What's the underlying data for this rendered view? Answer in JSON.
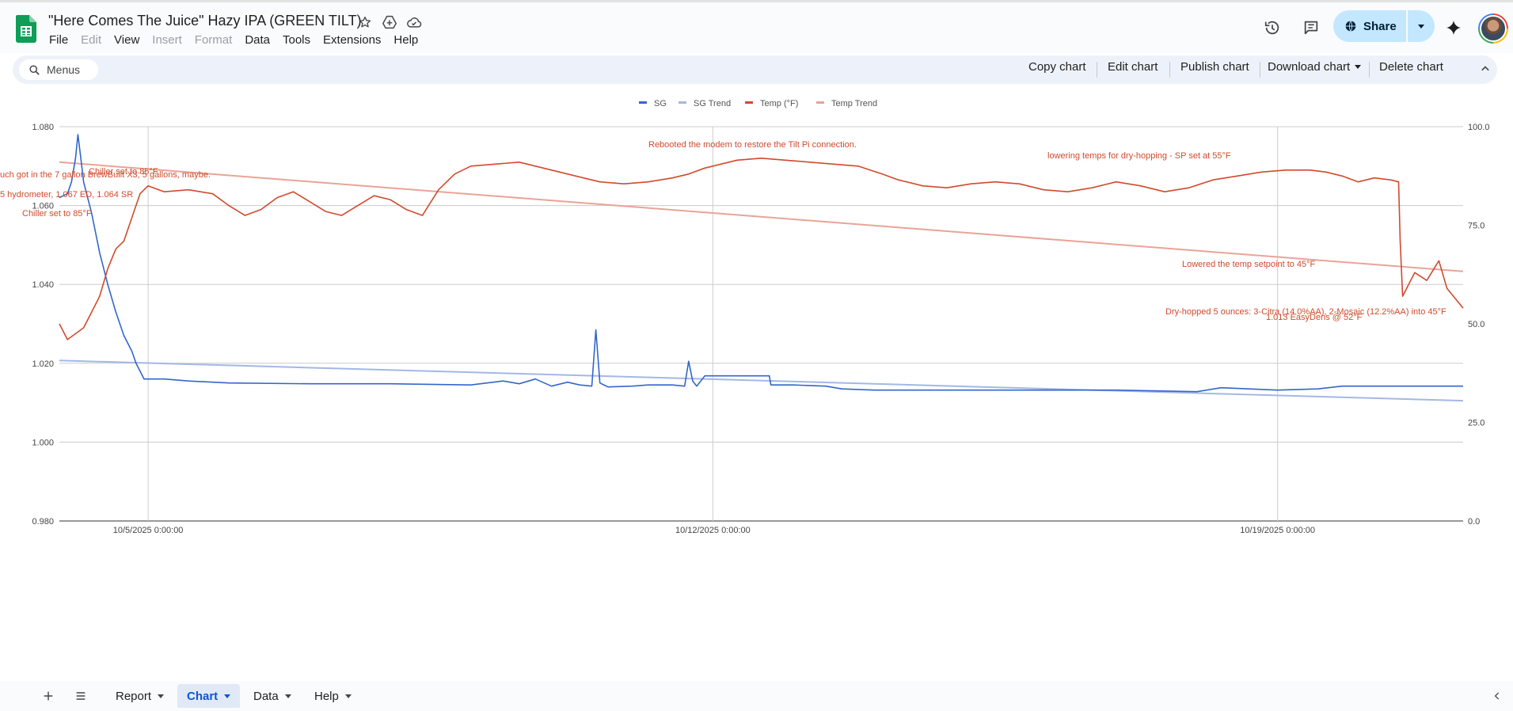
{
  "header": {
    "title": "\"Here Comes The Juice\" Hazy IPA (GREEN TILT)",
    "menus": [
      {
        "label": "File",
        "enabled": true
      },
      {
        "label": "Edit",
        "enabled": false
      },
      {
        "label": "View",
        "enabled": true
      },
      {
        "label": "Insert",
        "enabled": false
      },
      {
        "label": "Format",
        "enabled": false
      },
      {
        "label": "Data",
        "enabled": true
      },
      {
        "label": "Tools",
        "enabled": true
      },
      {
        "label": "Extensions",
        "enabled": true
      },
      {
        "label": "Help",
        "enabled": true
      }
    ],
    "share_label": "Share",
    "title_icons": [
      "star-icon",
      "move-to-drive-icon",
      "cloud-saved-icon"
    ],
    "right_icons": [
      "version-history-icon",
      "comments-icon",
      "gemini-sparkle-icon"
    ]
  },
  "toolbar": {
    "search_placeholder": "Menus",
    "copy_chart": "Copy chart",
    "edit_chart": "Edit chart",
    "publish_chart": "Publish chart",
    "download_chart": "Download chart",
    "delete_chart": "Delete chart"
  },
  "chart_data": {
    "type": "line",
    "title": "",
    "legend": {
      "position": "top",
      "entries": [
        {
          "name": "SG",
          "color": "#3366cc"
        },
        {
          "name": "SG Trend",
          "color": "#a3b8e6"
        },
        {
          "name": "Temp (°F)",
          "color": "#d14a2d"
        },
        {
          "name": "Temp Trend",
          "color": "#e8a497"
        }
      ]
    },
    "grid": true,
    "x_axis": {
      "type": "datetime",
      "range": [
        "2025-10-04T00:00:00",
        "2025-10-21T16:00:00"
      ],
      "ticks": [
        "10/5/2025 0:00:00",
        "10/12/2025 0:00:00",
        "10/19/2025 0:00:00"
      ],
      "tick_values": [
        1.0,
        8.0,
        15.0
      ]
    },
    "y_left": {
      "label": "",
      "range": [
        0.98,
        1.08
      ],
      "ticks": [
        "0.980",
        "1.000",
        "1.020",
        "1.040",
        "1.060",
        "1.080"
      ]
    },
    "y_right": {
      "label": "",
      "range": [
        0,
        100
      ],
      "ticks": [
        "0.0",
        "25.0",
        "50.0",
        "75.0",
        "100.0"
      ]
    },
    "series": [
      {
        "name": "SG",
        "axis": "left",
        "color": "#3366cc",
        "points": [
          [
            -0.1,
            1.062
          ],
          [
            0.0,
            1.063
          ],
          [
            0.05,
            1.066
          ],
          [
            0.1,
            1.072
          ],
          [
            0.13,
            1.078
          ],
          [
            0.16,
            1.073
          ],
          [
            0.2,
            1.066
          ],
          [
            0.3,
            1.058
          ],
          [
            0.4,
            1.048
          ],
          [
            0.5,
            1.04
          ],
          [
            0.6,
            1.033
          ],
          [
            0.7,
            1.027
          ],
          [
            0.8,
            1.023
          ],
          [
            0.85,
            1.02
          ],
          [
            0.9,
            1.018
          ],
          [
            0.95,
            1.016
          ],
          [
            1.2,
            1.016
          ],
          [
            1.5,
            1.0155
          ],
          [
            2.0,
            1.015
          ],
          [
            3.0,
            1.0148
          ],
          [
            4.0,
            1.0148
          ],
          [
            5.0,
            1.0145
          ],
          [
            5.4,
            1.0155
          ],
          [
            5.6,
            1.0148
          ],
          [
            5.8,
            1.016
          ],
          [
            6.0,
            1.0142
          ],
          [
            6.2,
            1.0152
          ],
          [
            6.35,
            1.0145
          ],
          [
            6.5,
            1.0142
          ],
          [
            6.55,
            1.0285
          ],
          [
            6.6,
            1.015
          ],
          [
            6.7,
            1.014
          ],
          [
            7.0,
            1.0142
          ],
          [
            7.2,
            1.0145
          ],
          [
            7.5,
            1.0145
          ],
          [
            7.65,
            1.0142
          ],
          [
            7.7,
            1.0205
          ],
          [
            7.75,
            1.0155
          ],
          [
            7.8,
            1.0142
          ],
          [
            7.9,
            1.0168
          ],
          [
            8.2,
            1.0168
          ],
          [
            8.7,
            1.0168
          ],
          [
            8.72,
            1.0145
          ],
          [
            9.0,
            1.0145
          ],
          [
            9.4,
            1.0142
          ],
          [
            9.6,
            1.0135
          ],
          [
            10.0,
            1.0132
          ],
          [
            11.0,
            1.0132
          ],
          [
            12.0,
            1.0132
          ],
          [
            13.0,
            1.0132
          ],
          [
            14.0,
            1.0128
          ],
          [
            14.3,
            1.0138
          ],
          [
            15.0,
            1.0132
          ],
          [
            15.5,
            1.0135
          ],
          [
            15.8,
            1.0142
          ],
          [
            16.5,
            1.0142
          ],
          [
            17.0,
            1.0142
          ],
          [
            17.3,
            1.0142
          ]
        ]
      },
      {
        "name": "SG Trend",
        "axis": "left",
        "color": "#a3b8e6",
        "points": [
          [
            -0.1,
            1.0207
          ],
          [
            17.3,
            1.0105
          ]
        ]
      },
      {
        "name": "Temp (°F)",
        "axis": "right",
        "color": "#d14a2d",
        "points": [
          [
            -0.1,
            50.0
          ],
          [
            0.0,
            46.0
          ],
          [
            0.2,
            49.0
          ],
          [
            0.3,
            53.0
          ],
          [
            0.4,
            57.0
          ],
          [
            0.5,
            64.0
          ],
          [
            0.6,
            69.0
          ],
          [
            0.7,
            71.0
          ],
          [
            0.8,
            77.0
          ],
          [
            0.9,
            83.0
          ],
          [
            1.0,
            85.0
          ],
          [
            1.2,
            83.5
          ],
          [
            1.5,
            84.0
          ],
          [
            1.8,
            83.0
          ],
          [
            2.0,
            80.0
          ],
          [
            2.2,
            77.5
          ],
          [
            2.4,
            79.0
          ],
          [
            2.6,
            82.0
          ],
          [
            2.8,
            83.5
          ],
          [
            3.0,
            81.0
          ],
          [
            3.2,
            78.5
          ],
          [
            3.4,
            77.5
          ],
          [
            3.6,
            80.0
          ],
          [
            3.8,
            82.5
          ],
          [
            4.0,
            81.5
          ],
          [
            4.2,
            79.0
          ],
          [
            4.4,
            77.5
          ],
          [
            4.6,
            84.0
          ],
          [
            4.8,
            88.0
          ],
          [
            5.0,
            90.0
          ],
          [
            5.3,
            90.5
          ],
          [
            5.6,
            91.0
          ],
          [
            5.8,
            90.0
          ],
          [
            6.0,
            89.0
          ],
          [
            6.3,
            87.5
          ],
          [
            6.6,
            86.0
          ],
          [
            6.9,
            85.5
          ],
          [
            7.2,
            86.0
          ],
          [
            7.5,
            87.0
          ],
          [
            7.7,
            88.0
          ],
          [
            7.9,
            89.5
          ],
          [
            8.0,
            90.0
          ],
          [
            8.3,
            91.5
          ],
          [
            8.6,
            92.0
          ],
          [
            8.9,
            91.5
          ],
          [
            9.2,
            91.0
          ],
          [
            9.5,
            90.5
          ],
          [
            9.8,
            90.0
          ],
          [
            10.1,
            88.0
          ],
          [
            10.3,
            86.5
          ],
          [
            10.6,
            85.0
          ],
          [
            10.9,
            84.5
          ],
          [
            11.2,
            85.5
          ],
          [
            11.5,
            86.0
          ],
          [
            11.8,
            85.5
          ],
          [
            12.1,
            84.0
          ],
          [
            12.4,
            83.5
          ],
          [
            12.7,
            84.5
          ],
          [
            13.0,
            86.0
          ],
          [
            13.3,
            85.0
          ],
          [
            13.6,
            83.5
          ],
          [
            13.9,
            84.5
          ],
          [
            14.2,
            86.5
          ],
          [
            14.5,
            87.5
          ],
          [
            14.8,
            88.5
          ],
          [
            15.1,
            89.0
          ],
          [
            15.4,
            89.0
          ],
          [
            15.6,
            88.5
          ],
          [
            15.8,
            87.5
          ],
          [
            16.0,
            86.0
          ],
          [
            16.2,
            87.0
          ],
          [
            16.4,
            86.5
          ],
          [
            16.5,
            86.0
          ],
          [
            16.52,
            71.0
          ],
          [
            16.55,
            57.0
          ],
          [
            16.7,
            63.0
          ],
          [
            16.85,
            61.0
          ],
          [
            17.0,
            66.0
          ],
          [
            17.1,
            59.0
          ],
          [
            17.3,
            54.0
          ]
        ]
      },
      {
        "name": "Temp Trend",
        "axis": "right",
        "color": "#e8a497",
        "points": [
          [
            -0.1,
            91.0
          ],
          [
            17.3,
            63.3
          ]
        ]
      }
    ],
    "annotations": [
      {
        "text": "Rebooted the modem to restore the Tilt Pi connection.",
        "color": "#d14a2d"
      },
      {
        "text": "lowering temps for dry-hopping - SP set at 55°F",
        "color": "#d14a2d"
      },
      {
        "text": "Lowered the temp setpoint to 45°F",
        "color": "#d14a2d"
      },
      {
        "text": "Dry-hopped 5 ounces: 3-Citra (14.0%AA), 2-Mosaic (12.2%AA) into 45°F",
        "color": "#d14a2d"
      },
      {
        "text": "1.013 EasyDens @ 52°F",
        "color": "#d14a2d"
      },
      {
        "text": "uch got in the 7 gallon BrewBuilt X3; 5 gallons, maybe.",
        "color": "#d14a2d"
      },
      {
        "text": "Chiller set to 85°F",
        "color": "#d14a2d"
      },
      {
        "text": "5 hydrometer, 1.067 ED, 1.064 SR",
        "color": "#d14a2d"
      },
      {
        "text": "Chiller set to 85°F",
        "color": "#d14a2d"
      }
    ]
  },
  "bottombar": {
    "tabs": [
      {
        "label": "Report",
        "active": false
      },
      {
        "label": "Chart",
        "active": true
      },
      {
        "label": "Data",
        "active": false
      },
      {
        "label": "Help",
        "active": false
      }
    ]
  }
}
